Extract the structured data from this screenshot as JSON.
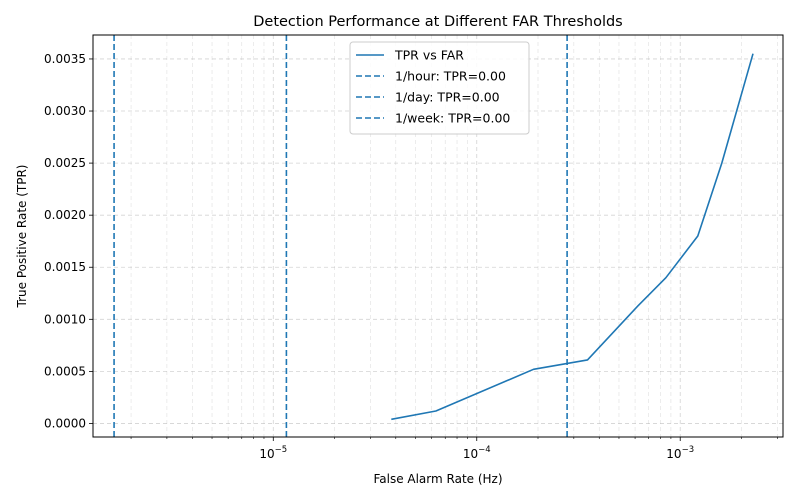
{
  "chart_data": {
    "type": "line",
    "title": "Detection Performance at Different FAR Thresholds",
    "xlabel": "False Alarm Rate (Hz)",
    "ylabel": "True Positive Rate (TPR)",
    "x_scale": "log",
    "xlim": [
      1.3e-06,
      0.0032
    ],
    "ylim": [
      -0.00013,
      0.00373
    ],
    "grid": true,
    "legend_position": "top-center",
    "x_major_ticks": [
      {
        "value": 1e-05,
        "label": "10^{-5}"
      },
      {
        "value": 0.0001,
        "label": "10^{-4}"
      },
      {
        "value": 0.001,
        "label": "10^{-3}"
      }
    ],
    "y_ticks": [
      {
        "value": 0.0,
        "label": "0.0000"
      },
      {
        "value": 0.0005,
        "label": "0.0005"
      },
      {
        "value": 0.001,
        "label": "0.0010"
      },
      {
        "value": 0.0015,
        "label": "0.0015"
      },
      {
        "value": 0.002,
        "label": "0.0020"
      },
      {
        "value": 0.0025,
        "label": "0.0025"
      },
      {
        "value": 0.003,
        "label": "0.0030"
      },
      {
        "value": 0.0035,
        "label": "0.0035"
      }
    ],
    "series": [
      {
        "name": "TPR vs FAR",
        "color": "#1f77b4",
        "style": "solid",
        "points": [
          {
            "x": 3.8e-05,
            "y": 4e-05
          },
          {
            "x": 6.3e-05,
            "y": 0.00012
          },
          {
            "x": 0.00019,
            "y": 0.00052
          },
          {
            "x": 0.00035,
            "y": 0.00061
          },
          {
            "x": 0.00062,
            "y": 0.00113
          },
          {
            "x": 0.00085,
            "y": 0.0014
          },
          {
            "x": 0.00122,
            "y": 0.0018
          },
          {
            "x": 0.0016,
            "y": 0.0025
          },
          {
            "x": 0.00228,
            "y": 0.00355
          }
        ]
      }
    ],
    "thresholds": [
      {
        "name": "1/hour: TPR=0.00",
        "x": 0.000278,
        "color": "#1f77b4",
        "style": "dashed"
      },
      {
        "name": "1/day: TPR=0.00",
        "x": 1.16e-05,
        "color": "#1f77b4",
        "style": "dashed"
      },
      {
        "name": "1/week: TPR=0.00",
        "x": 1.65e-06,
        "color": "#1f77b4",
        "style": "dashed"
      }
    ]
  }
}
